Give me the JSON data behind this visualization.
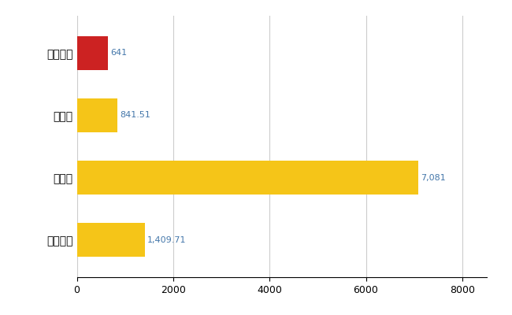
{
  "categories": [
    "与那原町",
    "県平均",
    "県最大",
    "全国平均"
  ],
  "values": [
    641,
    841.51,
    7081,
    1409.71
  ],
  "bar_colors": [
    "#cc2222",
    "#f5c518",
    "#f5c518",
    "#f5c518"
  ],
  "labels": [
    "641",
    "841.51",
    "7,081",
    "1,409.71"
  ],
  "xlim": [
    0,
    8500
  ],
  "xticks": [
    0,
    2000,
    4000,
    6000,
    8000
  ],
  "background_color": "#ffffff",
  "grid_color": "#cccccc",
  "label_color": "#4477aa",
  "bar_height": 0.55,
  "figsize": [
    6.5,
    4.0
  ],
  "dpi": 100
}
